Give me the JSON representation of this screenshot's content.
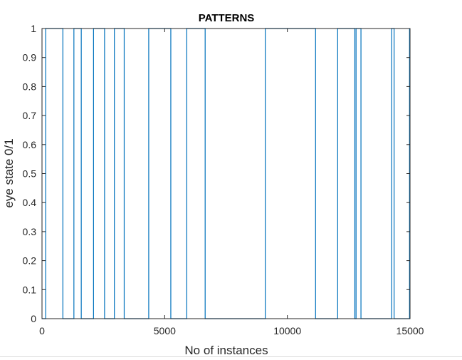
{
  "chart_data": {
    "type": "line",
    "title": "PATTERNS",
    "xlabel": "No of instances",
    "ylabel": "eye state 0/1",
    "xlim": [
      0,
      15000
    ],
    "ylim": [
      0,
      1
    ],
    "xticks": [
      0,
      5000,
      10000,
      15000
    ],
    "xtick_labels": [
      "0",
      "5000",
      "10000",
      "15000"
    ],
    "yticks": [
      0,
      0.1,
      0.2,
      0.3,
      0.4,
      0.5,
      0.6,
      0.7,
      0.8,
      0.9,
      1
    ],
    "ytick_labels": [
      "0",
      "0.1",
      "0.2",
      "0.3",
      "0.4",
      "0.5",
      "0.6",
      "0.7",
      "0.8",
      "0.9",
      "1"
    ],
    "grid": false,
    "line_color": "#0072bd",
    "series": [
      {
        "x": [
          0,
          150,
          150,
          850,
          850,
          1300,
          1300,
          1600,
          1600,
          2100,
          2100,
          2550,
          2550,
          2950,
          2950,
          3350,
          3350,
          4350,
          4350,
          5250,
          5250,
          5900,
          5900,
          6650,
          6650,
          9100,
          9100,
          11150,
          11150,
          12050,
          12050,
          12750,
          12750,
          12800,
          12800,
          13000,
          13000,
          14250,
          14250,
          14350,
          14350,
          14980,
          14980
        ],
        "y": [
          0,
          0,
          1,
          1,
          0,
          0,
          1,
          1,
          0,
          0,
          1,
          1,
          0,
          0,
          1,
          1,
          0,
          0,
          1,
          1,
          0,
          0,
          1,
          1,
          0,
          0,
          1,
          1,
          0,
          0,
          1,
          1,
          0,
          0,
          1,
          1,
          0,
          0,
          1,
          1,
          0,
          0,
          1
        ]
      }
    ]
  }
}
